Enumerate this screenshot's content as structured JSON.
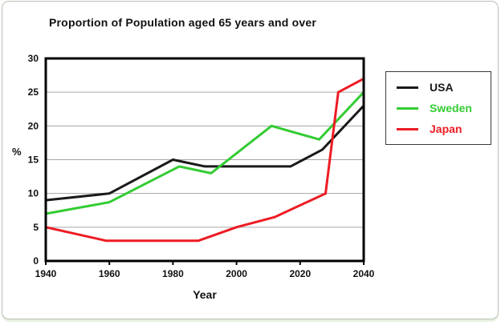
{
  "chart_data": {
    "type": "line",
    "title": "Proportion of Population aged 65 years and over",
    "xlabel": "Year",
    "ylabel": "%",
    "xlim": [
      1940,
      2040
    ],
    "ylim": [
      0,
      30
    ],
    "xticks": [
      1940,
      1960,
      1980,
      2000,
      2020,
      2040
    ],
    "yticks": [
      0,
      5,
      10,
      15,
      20,
      25,
      30
    ],
    "grid": "horizontal",
    "grid_color": "#a6a6a6",
    "axis_color": "#000000",
    "legend_position": "right",
    "series": [
      {
        "name": "USA",
        "color": "#1a1a1a",
        "points": [
          [
            1940,
            9
          ],
          [
            1960,
            10
          ],
          [
            1980,
            15
          ],
          [
            1990,
            14
          ],
          [
            2017,
            14
          ],
          [
            2027,
            16.5
          ],
          [
            2040,
            23
          ]
        ]
      },
      {
        "name": "Sweden",
        "color": "#33cc33",
        "points": [
          [
            1940,
            7
          ],
          [
            1960,
            8.7
          ],
          [
            1982,
            14
          ],
          [
            1992,
            13
          ],
          [
            2011,
            20
          ],
          [
            2026,
            18
          ],
          [
            2040,
            25
          ]
        ]
      },
      {
        "name": "Japan",
        "color": "#ed1c24",
        "points": [
          [
            1940,
            5
          ],
          [
            1959,
            3
          ],
          [
            1988,
            3
          ],
          [
            2000,
            5
          ],
          [
            2012,
            6.5
          ],
          [
            2028,
            10
          ],
          [
            2032,
            25
          ],
          [
            2040,
            27
          ]
        ]
      }
    ]
  }
}
